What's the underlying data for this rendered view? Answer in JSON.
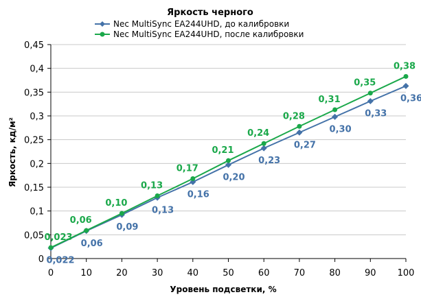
{
  "chart_data": {
    "type": "line",
    "title": "Яркость черного",
    "xlabel": "Уровень подсветки, %",
    "ylabel": "Яркость, кд/м²",
    "x": [
      0,
      10,
      20,
      30,
      40,
      50,
      60,
      70,
      80,
      90,
      100
    ],
    "xlim": [
      0,
      100
    ],
    "ylim": [
      0,
      0.45
    ],
    "x_ticks": [
      "0",
      "10",
      "20",
      "30",
      "40",
      "50",
      "60",
      "70",
      "80",
      "90",
      "100"
    ],
    "y_ticks": [
      "0",
      "0,05",
      "0,1",
      "0,15",
      "0,2",
      "0,25",
      "0,3",
      "0,35",
      "0,4",
      "0,45"
    ],
    "grid": "horizontal",
    "legend_position": "top",
    "series": [
      {
        "name": "Nec MultiSync EA244UHD,  до калибровки",
        "color": "#4472a8",
        "marker": "diamond",
        "values": [
          0.022,
          0.058,
          0.092,
          0.128,
          0.161,
          0.197,
          0.232,
          0.265,
          0.298,
          0.331,
          0.363
        ],
        "labels": [
          "0,022",
          "0,06",
          "0,09",
          "0,13",
          "0,16",
          "0,20",
          "0,23",
          "0,27",
          "0,30",
          "0,33",
          "0,36"
        ]
      },
      {
        "name": "Nec MultiSync EA244UHD,  после калибровки",
        "color": "#1aa84a",
        "marker": "circle",
        "values": [
          0.023,
          0.059,
          0.095,
          0.132,
          0.168,
          0.206,
          0.242,
          0.278,
          0.313,
          0.348,
          0.383
        ],
        "labels": [
          "0,023",
          "0,06",
          "0,10",
          "0,13",
          "0,17",
          "0,21",
          "0,24",
          "0,28",
          "0,31",
          "0,35",
          "0,38"
        ]
      }
    ]
  }
}
